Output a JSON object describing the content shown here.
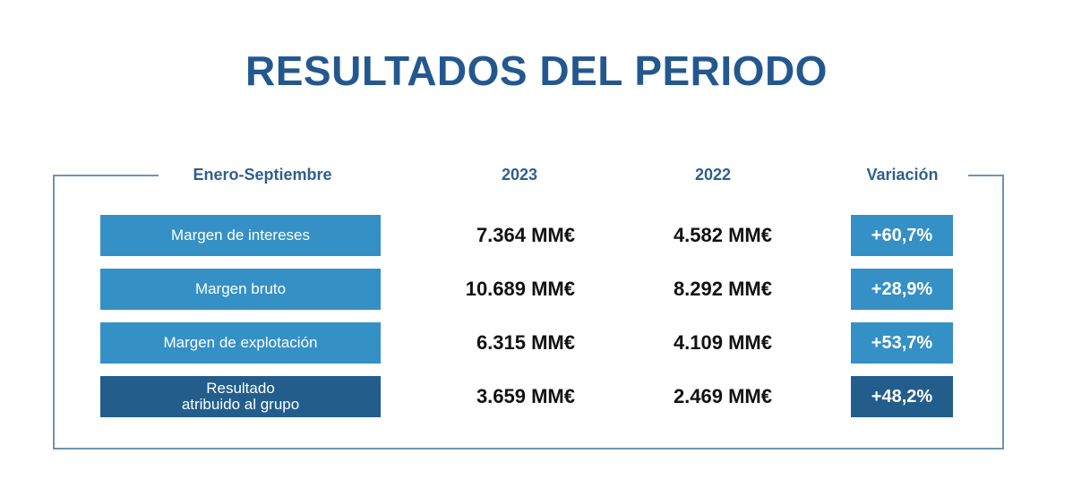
{
  "title": "RESULTADOS DEL PERIODO",
  "headers": {
    "period": "Enero-Septiembre",
    "year_current": "2023",
    "year_previous": "2022",
    "variation": "Variación"
  },
  "rows": [
    {
      "label": "Margen de intereses",
      "v2023": "7.364 MM€",
      "v2022": "4.582 MM€",
      "variation": "+60,7%"
    },
    {
      "label": "Margen bruto",
      "v2023": "10.689 MM€",
      "v2022": "8.292 MM€",
      "variation": "+28,9%"
    },
    {
      "label": "Margen de explotación",
      "v2023": "6.315 MM€",
      "v2022": "4.109 MM€",
      "variation": "+53,7%"
    },
    {
      "label": "Resultado\natribuido al grupo",
      "v2023": "3.659 MM€",
      "v2022": "2.469 MM€",
      "variation": "+48,2%"
    }
  ],
  "colors": {
    "title": "#23588f",
    "label_light": "#3590c6",
    "label_dark": "#225d8c",
    "frame": "#6f93b4"
  }
}
